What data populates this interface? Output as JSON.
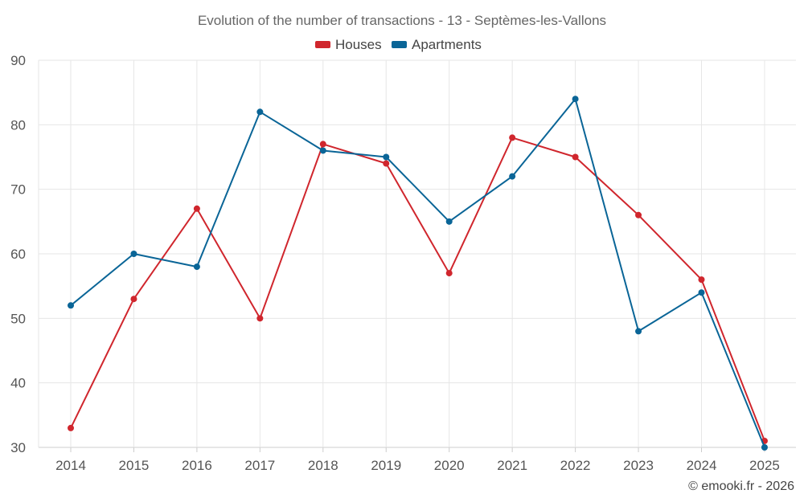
{
  "chart_data": {
    "type": "line",
    "title": "Evolution of the number of transactions - 13 - Septèmes-les-Vallons",
    "xlabel": "",
    "ylabel": "",
    "categories": [
      "2014",
      "2015",
      "2016",
      "2017",
      "2018",
      "2019",
      "2020",
      "2021",
      "2022",
      "2023",
      "2024",
      "2025"
    ],
    "ylim": [
      30,
      90
    ],
    "yticks": [
      30,
      40,
      50,
      60,
      70,
      80,
      90
    ],
    "grid": true,
    "legend_position": "top-center",
    "series": [
      {
        "name": "Houses",
        "color": "#d0262d",
        "values": [
          33,
          53,
          67,
          50,
          77,
          74,
          57,
          78,
          75,
          66,
          56,
          31
        ]
      },
      {
        "name": "Apartments",
        "color": "#0a6597",
        "values": [
          52,
          60,
          58,
          82,
          76,
          75,
          65,
          72,
          84,
          48,
          54,
          30
        ]
      }
    ],
    "credit": "© emooki.fr - 2026"
  }
}
